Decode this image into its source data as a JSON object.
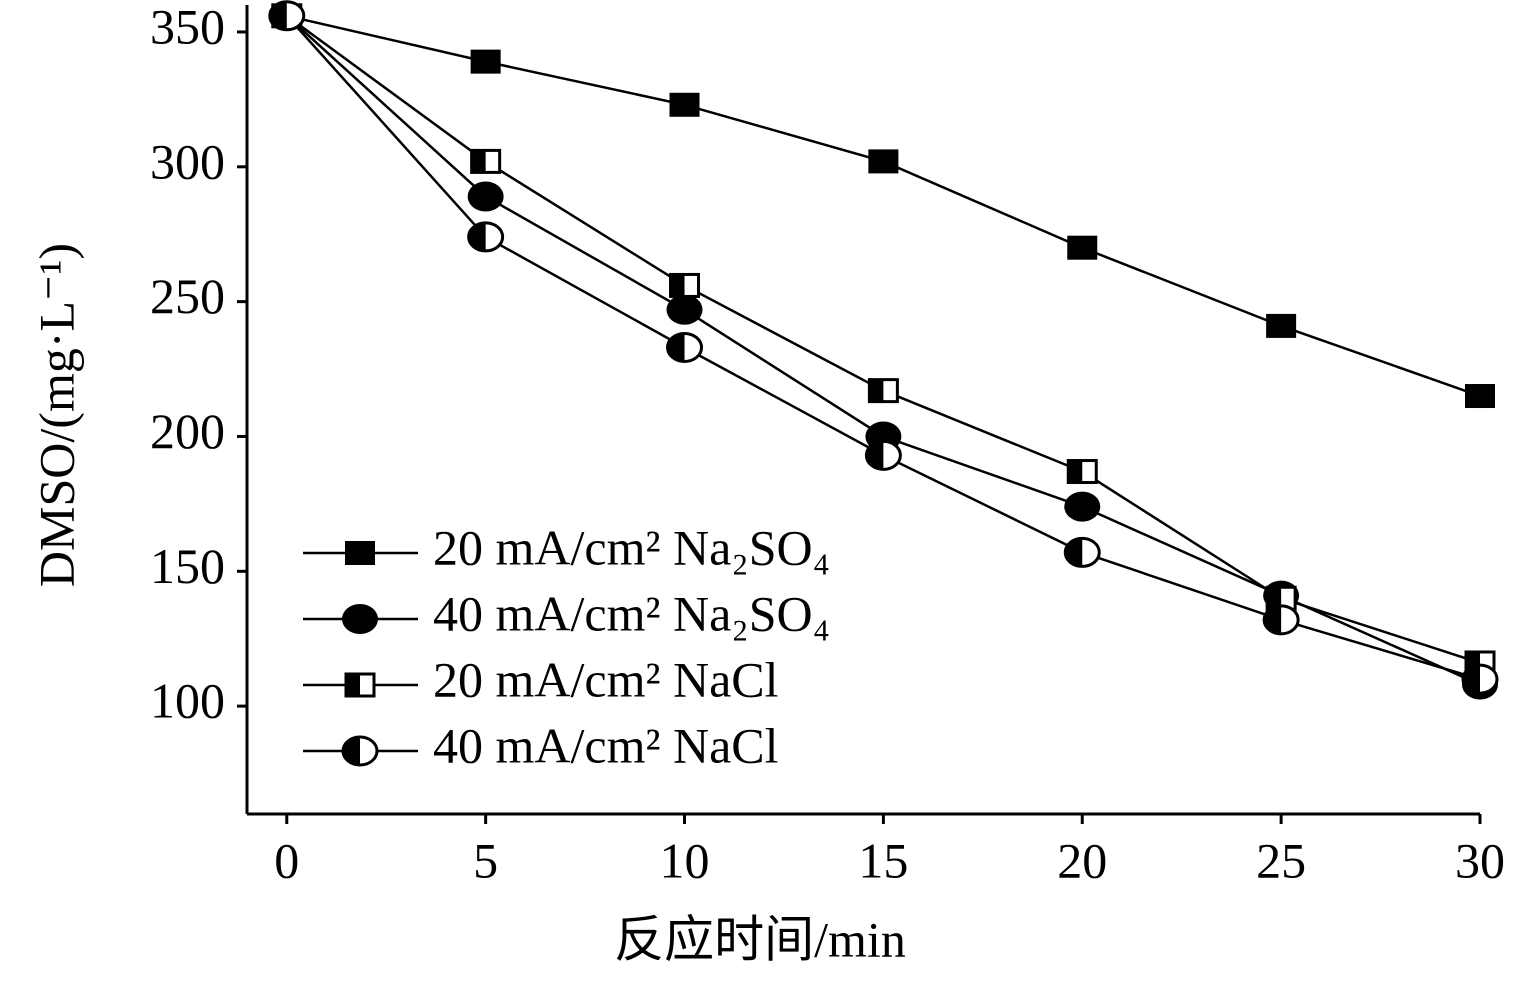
{
  "chart_data": {
    "type": "line",
    "x_label": "反应时间/min",
    "y_label": "DMSO/(mg·L⁻¹)",
    "x": [
      0,
      5,
      10,
      15,
      20,
      25,
      30
    ],
    "xlim": [
      -1,
      30
    ],
    "xticks": [
      0,
      5,
      10,
      15,
      20,
      25,
      30
    ],
    "ylim": [
      60,
      360
    ],
    "yticks": [
      100,
      150,
      200,
      250,
      300,
      350
    ],
    "legend": "lower-left",
    "series": [
      {
        "name": "20 mA/cm² Na₂SO₄",
        "color": "#000000",
        "marker": "square",
        "values": [
          356,
          339,
          323,
          302,
          270,
          241,
          215
        ]
      },
      {
        "name": "40 mA/cm² Na₂SO₄",
        "color": "#000000",
        "marker": "circle",
        "values": [
          356,
          289,
          247,
          200,
          174,
          141,
          108
        ]
      },
      {
        "name": "20 mA/cm² NaCl",
        "color": "#000000",
        "marker": "half-square",
        "values": [
          356,
          302,
          256,
          217,
          187,
          140,
          116
        ]
      },
      {
        "name": "40 mA/cm² NaCl",
        "color": "#000000",
        "marker": "half-circle",
        "values": [
          356,
          274,
          233,
          193,
          157,
          132,
          110
        ]
      }
    ]
  }
}
